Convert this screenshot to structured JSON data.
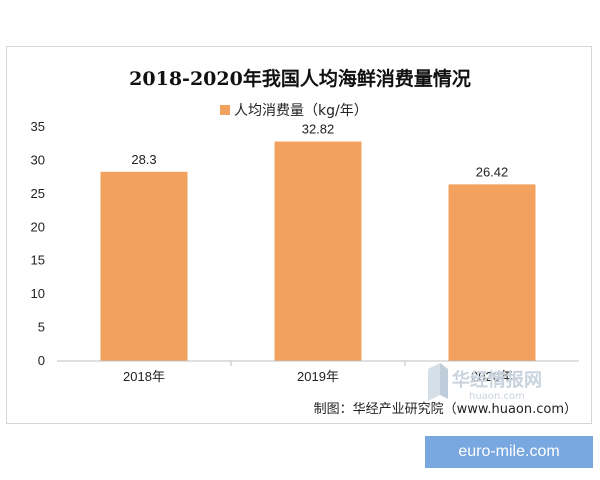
{
  "chart_data": {
    "type": "bar",
    "title": "2018-2020年我国人均海鲜消费量情况",
    "legend": [
      "人均消费量（kg/年）"
    ],
    "legend_placement": "top-center",
    "categories": [
      "2018年",
      "2019年",
      "2020年"
    ],
    "series": [
      {
        "name": "人均消费量（kg/年）",
        "values": [
          28.3,
          32.82,
          26.42
        ]
      }
    ],
    "data_labels": [
      "28.3",
      "32.82",
      "26.42"
    ],
    "ylim": [
      0,
      35
    ],
    "yticks": [
      "0",
      "5",
      "10",
      "15",
      "20",
      "25",
      "30",
      "35"
    ],
    "grid": false,
    "xlabel": "",
    "ylabel": ""
  },
  "colors": {
    "bar": "#f2a15e",
    "axis": "#bfbfbf"
  },
  "source_note": "制图：华经产业研究院（www.huaon.com）",
  "watermark": {
    "text": "华经情报网",
    "url": "huaon.com",
    "icon": "huaon-logo-icon"
  },
  "site_badge": "euro-mile.com"
}
